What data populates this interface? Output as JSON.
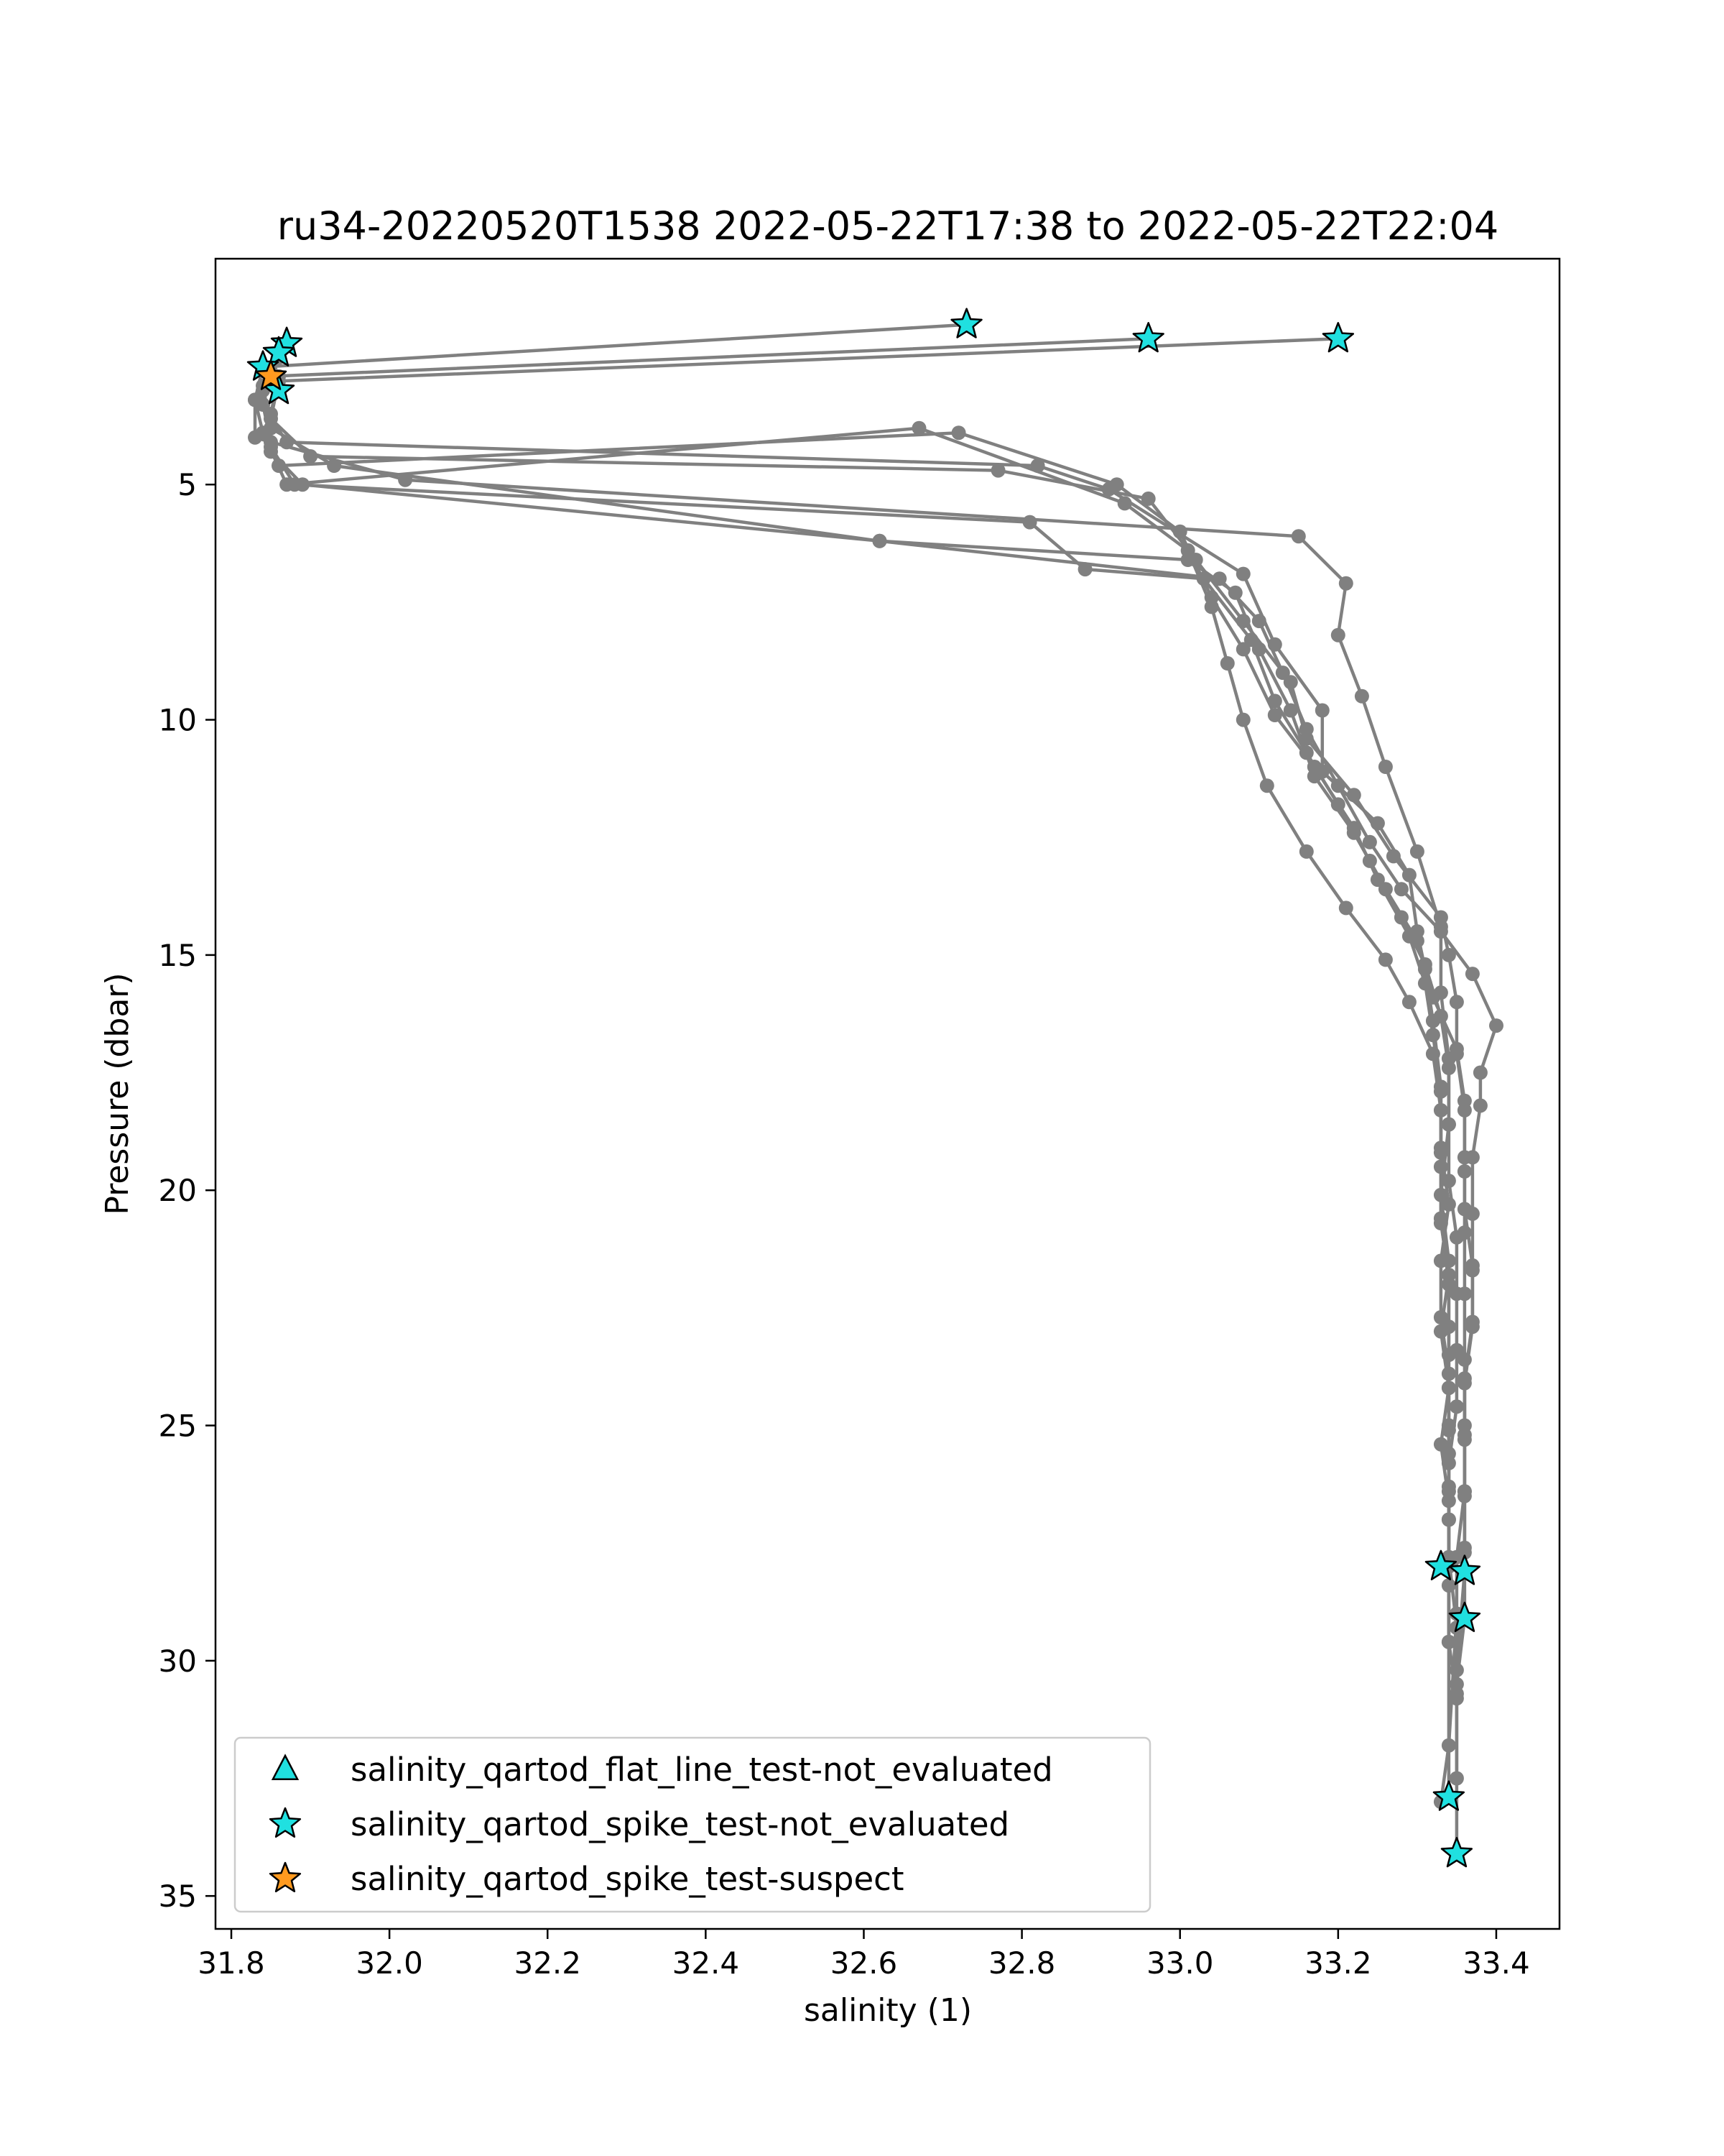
{
  "chart_data": {
    "type": "line",
    "title": "ru34-20220520T1538 2022-05-22T17:38 to 2022-05-22T22:04",
    "xlabel": "salinity (1)",
    "ylabel": "Pressure (dbar)",
    "xlim": [
      31.78,
      33.48
    ],
    "ylim": [
      35.7,
      0.2
    ],
    "y_inverted": true,
    "grid": false,
    "xticks": [
      "31.8",
      "32.0",
      "32.2",
      "32.4",
      "32.6",
      "32.8",
      "33.0",
      "33.2",
      "33.4"
    ],
    "yticks": [
      "5",
      "10",
      "15",
      "20",
      "25",
      "30",
      "35"
    ],
    "legend_position": "lower-left",
    "line_color": "#808080",
    "series": [
      {
        "x": [
          32.73,
          31.84,
          31.83,
          31.83,
          32.02,
          33.15,
          33.21,
          33.2,
          33.23,
          33.26,
          33.3,
          33.33,
          33.33,
          33.34,
          33.34,
          33.33,
          33.34,
          33.34,
          33.34,
          33.34,
          33.34,
          33.34,
          33.34,
          33.35
        ],
        "y": [
          1.6,
          2.5,
          3.2,
          4.0,
          4.9,
          6.1,
          7.1,
          8.2,
          9.5,
          11.0,
          12.8,
          14.4,
          15.8,
          17.2,
          18.6,
          20.1,
          21.5,
          22.9,
          24.2,
          25.6,
          27.0,
          28.4,
          29.6,
          30.8
        ]
      },
      {
        "x": [
          32.96,
          31.85,
          31.84,
          31.87,
          32.82,
          32.91,
          33.08,
          33.12,
          33.18,
          33.18,
          33.25,
          33.29,
          33.3,
          33.31,
          33.32,
          33.33,
          33.33,
          33.33,
          33.34,
          33.34,
          33.34,
          33.34,
          33.34,
          33.35,
          33.35
        ],
        "y": [
          1.9,
          2.7,
          3.3,
          4.1,
          4.6,
          5.1,
          6.9,
          8.4,
          9.8,
          11.1,
          12.2,
          13.3,
          14.5,
          15.3,
          16.4,
          17.8,
          19.2,
          20.6,
          22.0,
          23.5,
          25.0,
          26.4,
          27.8,
          29.3,
          30.7
        ]
      },
      {
        "x": [
          33.2,
          31.86,
          31.85,
          31.9,
          32.77,
          32.96,
          33.02,
          33.08,
          33.14,
          33.16,
          33.22,
          33.27,
          33.33,
          33.34,
          33.35,
          33.35,
          33.36,
          33.36,
          33.36,
          33.36,
          33.36,
          33.36,
          33.36,
          33.35,
          33.35,
          33.34,
          33.33
        ],
        "y": [
          1.9,
          2.8,
          3.6,
          4.4,
          4.7,
          5.3,
          6.6,
          7.9,
          9.2,
          10.4,
          11.6,
          12.9,
          14.2,
          15.0,
          16.0,
          17.1,
          18.3,
          19.6,
          20.9,
          22.2,
          23.6,
          25.0,
          26.4,
          27.8,
          29.0,
          31.8,
          33.0
        ]
      },
      {
        "x": [
          31.87,
          31.84,
          31.85,
          31.93,
          32.62,
          33.01,
          33.07,
          33.1,
          33.14,
          33.17,
          33.22,
          33.26,
          33.3,
          33.32,
          33.35,
          33.36,
          33.36,
          33.36,
          33.37,
          33.37,
          33.36,
          33.36,
          33.36,
          33.36,
          33.36,
          33.35,
          33.35
        ],
        "y": [
          2.0,
          2.9,
          3.8,
          4.6,
          6.2,
          6.6,
          7.3,
          8.5,
          9.8,
          11.2,
          12.4,
          13.6,
          14.7,
          15.9,
          17.0,
          18.1,
          19.3,
          20.4,
          21.6,
          22.8,
          24.0,
          25.2,
          26.4,
          27.6,
          28.1,
          30.2,
          32.5
        ]
      },
      {
        "x": [
          31.86,
          31.84,
          31.85,
          31.89,
          32.62,
          33.05,
          33.1,
          33.13,
          33.16,
          33.2,
          33.24,
          33.28,
          33.33,
          33.37,
          33.4,
          33.38,
          33.38,
          33.37,
          33.37,
          33.37,
          33.37,
          33.36,
          33.36,
          33.36,
          33.36,
          33.36,
          33.35,
          33.35
        ],
        "y": [
          2.2,
          3.0,
          4.3,
          5.0,
          6.2,
          7.0,
          7.9,
          9.0,
          10.2,
          11.4,
          12.6,
          13.6,
          14.5,
          15.4,
          16.5,
          17.5,
          18.2,
          19.3,
          20.5,
          21.7,
          22.9,
          24.1,
          25.3,
          26.5,
          27.7,
          29.1,
          30.5,
          34.1
        ]
      },
      {
        "x": [
          31.86,
          31.83,
          31.84,
          31.87,
          32.67,
          32.93,
          33.01,
          33.04,
          33.06,
          33.08,
          33.11,
          33.16,
          33.21,
          33.26,
          33.29,
          33.32,
          33.33,
          33.33,
          33.33,
          33.34,
          33.33,
          33.34,
          33.33,
          33.34,
          33.34
        ],
        "y": [
          2.3,
          3.2,
          3.9,
          5.0,
          3.8,
          5.4,
          6.4,
          7.6,
          8.8,
          10.0,
          11.4,
          12.8,
          14.0,
          15.1,
          16.0,
          17.1,
          18.3,
          19.5,
          20.7,
          21.8,
          23.0,
          24.2,
          25.4,
          26.6,
          28.0
        ]
      },
      {
        "x": [
          31.85,
          31.84,
          31.85,
          31.86,
          32.72,
          32.92,
          33.0,
          33.04,
          33.08,
          33.12,
          33.17,
          33.22,
          33.25,
          33.29,
          33.31,
          33.32,
          33.33,
          33.33,
          33.34,
          33.33,
          33.33,
          33.34,
          33.34,
          33.34,
          33.34
        ],
        "y": [
          2.6,
          3.3,
          4.1,
          4.6,
          3.9,
          5.0,
          6.0,
          7.4,
          8.5,
          9.9,
          11.0,
          12.3,
          13.4,
          14.6,
          15.6,
          16.7,
          17.9,
          19.1,
          20.3,
          21.5,
          22.7,
          23.9,
          25.1,
          26.3,
          29.6
        ]
      },
      {
        "x": [
          31.86,
          31.85,
          31.85,
          31.88,
          32.81,
          32.88,
          33.03,
          33.09,
          33.12,
          33.16,
          33.2,
          33.24,
          33.28,
          33.31,
          33.33,
          33.34,
          33.34,
          33.34,
          33.35,
          33.35,
          33.35,
          33.35,
          33.34,
          33.34,
          33.34
        ],
        "y": [
          2.7,
          3.5,
          4.2,
          5.0,
          5.8,
          6.8,
          7.0,
          8.3,
          9.6,
          10.7,
          11.8,
          13.0,
          14.2,
          15.2,
          16.3,
          17.4,
          18.6,
          19.8,
          21.0,
          22.2,
          23.4,
          24.6,
          25.8,
          27.0,
          32.9
        ]
      }
    ],
    "flag_markers": [
      {
        "legend_label": "salinity_qartod_spike_test-not_evaluated",
        "color": "#20e0e0",
        "x": [
          32.73,
          32.96,
          33.2,
          31.87,
          31.86,
          31.84,
          31.86,
          33.33,
          33.36,
          33.36,
          33.34,
          33.35
        ],
        "y": [
          1.6,
          1.9,
          1.9,
          2.0,
          2.2,
          2.5,
          3.0,
          28.0,
          28.1,
          29.1,
          32.9,
          34.1
        ]
      },
      {
        "legend_label": "salinity_qartod_spike_test-suspect",
        "color": "#ff9a1f",
        "x": [
          31.85
        ],
        "y": [
          2.7
        ]
      }
    ],
    "legend": [
      {
        "label": "salinity_qartod_flat_line_test-not_evaluated",
        "marker": "triangle",
        "color": "#20e0e0"
      },
      {
        "label": "salinity_qartod_spike_test-not_evaluated",
        "marker": "star",
        "color": "#20e0e0"
      },
      {
        "label": "salinity_qartod_spike_test-suspect",
        "marker": "star",
        "color": "#ff9a1f"
      }
    ]
  }
}
